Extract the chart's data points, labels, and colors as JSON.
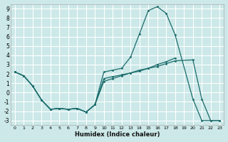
{
  "title": "",
  "xlabel": "Humidex (Indice chaleur)",
  "bg_color": "#cce8e8",
  "grid_color": "#ffffff",
  "line_color": "#1a6b6b",
  "xlim": [
    -0.5,
    23.5
  ],
  "ylim": [
    -3.5,
    9.5
  ],
  "xticks": [
    0,
    1,
    2,
    3,
    4,
    5,
    6,
    7,
    8,
    9,
    10,
    11,
    12,
    13,
    14,
    15,
    16,
    17,
    18,
    19,
    20,
    21,
    22,
    23
  ],
  "yticks": [
    -3,
    -2,
    -1,
    0,
    1,
    2,
    3,
    4,
    5,
    6,
    7,
    8,
    9
  ],
  "line1_x": [
    0,
    1,
    2,
    3,
    4,
    5,
    6,
    7,
    8,
    9,
    10,
    11,
    12,
    13,
    14,
    15,
    16,
    17,
    18,
    20,
    21,
    22,
    23
  ],
  "line1_y": [
    2.2,
    1.8,
    0.7,
    -0.8,
    -1.8,
    -1.7,
    -1.8,
    -1.7,
    -2.1,
    -1.3,
    2.2,
    2.4,
    2.6,
    3.8,
    6.3,
    8.8,
    9.2,
    8.5,
    6.2,
    -0.7,
    -3.0,
    -3.0,
    -3.0
  ],
  "line2_x": [
    0,
    1,
    2,
    3,
    4,
    5,
    6,
    7,
    8,
    9,
    10,
    11,
    12,
    13,
    14,
    15,
    16,
    17,
    18,
    20,
    21,
    22,
    23
  ],
  "line2_y": [
    2.2,
    1.8,
    0.7,
    -0.8,
    -1.8,
    -1.7,
    -1.8,
    -1.7,
    -2.1,
    -1.3,
    1.5,
    1.7,
    1.9,
    2.1,
    2.3,
    2.6,
    2.8,
    3.1,
    3.4,
    3.5,
    -0.7,
    -3.0,
    -3.0
  ],
  "line3_x": [
    0,
    1,
    2,
    3,
    4,
    5,
    6,
    7,
    8,
    9,
    10,
    11,
    12,
    13,
    14,
    15,
    16,
    17,
    18
  ],
  "line3_y": [
    2.2,
    1.8,
    0.7,
    -0.8,
    -1.8,
    -1.7,
    -1.8,
    -1.7,
    -2.1,
    -1.3,
    1.2,
    1.5,
    1.8,
    2.1,
    2.4,
    2.6,
    3.0,
    3.3,
    3.7
  ]
}
